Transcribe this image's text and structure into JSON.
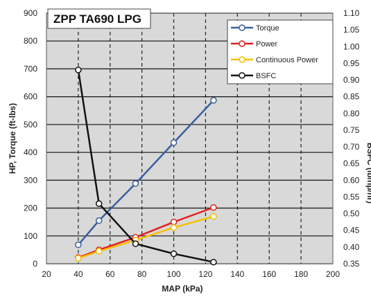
{
  "chart_data": {
    "type": "line",
    "title": "ZPP TA690 LPG",
    "xlabel": "MAP (kPa)",
    "ylabel": "HP, Torque (ft-lbs)",
    "y2label": "BSFC (lb/hp/hr)",
    "xlim": [
      20,
      200
    ],
    "ylim": [
      0,
      900
    ],
    "y2lim": [
      0.35,
      1.1
    ],
    "xticks": [
      "20",
      "40",
      "60",
      "80",
      "100",
      "120",
      "140",
      "160",
      "180",
      "200"
    ],
    "yticks": [
      "0",
      "100",
      "200",
      "300",
      "400",
      "500",
      "600",
      "700",
      "800",
      "900"
    ],
    "y2ticks": [
      "0.35",
      "0.40",
      "0.45",
      "0.50",
      "0.55",
      "0.60",
      "0.65",
      "0.70",
      "0.75",
      "0.80",
      "0.85",
      "0.90",
      "0.95",
      "1.00",
      "1.05",
      "1.10"
    ],
    "grid": {
      "vertical_dashed": true,
      "horizontal_solid": true,
      "plot_background": "#d9d9d9"
    },
    "legend_position": "top-right",
    "series": [
      {
        "name": "Torque",
        "axis": "left",
        "color": "#3a5f9f",
        "x": [
          40,
          53,
          76,
          100,
          125
        ],
        "y": [
          68,
          155,
          288,
          435,
          587
        ]
      },
      {
        "name": "Power",
        "axis": "left",
        "color": "#e02020",
        "x": [
          40,
          53,
          76,
          100,
          125
        ],
        "y": [
          22,
          50,
          95,
          150,
          202
        ]
      },
      {
        "name": "Continuous Power",
        "axis": "left",
        "color": "#f5c000",
        "x": [
          40,
          53,
          76,
          100,
          125
        ],
        "y": [
          20,
          45,
          85,
          130,
          170
        ]
      },
      {
        "name": "BSFC",
        "axis": "right",
        "color": "#111111",
        "x": [
          40,
          53,
          76,
          100,
          125
        ],
        "y": [
          0.93,
          0.53,
          0.41,
          0.38,
          0.355
        ]
      }
    ]
  }
}
